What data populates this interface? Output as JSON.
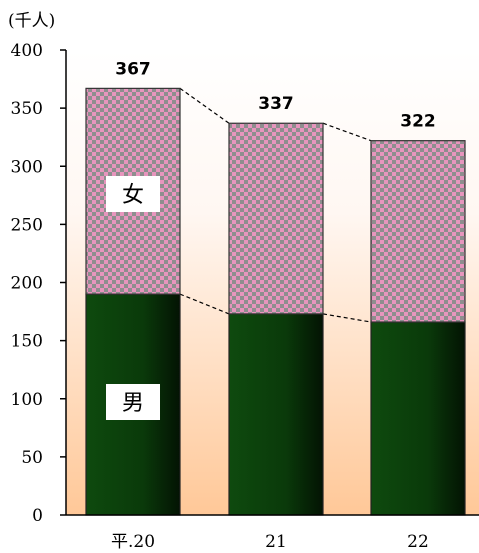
{
  "chart_data": {
    "type": "bar",
    "stacked": true,
    "unit": "(千人)",
    "categories": [
      "平.20",
      "21",
      "22"
    ],
    "series": [
      {
        "name": "男",
        "values": [
          190,
          173,
          166
        ],
        "color": "#0a3a0a"
      },
      {
        "name": "女",
        "values": [
          177,
          164,
          156
        ],
        "color": "#e795bd"
      }
    ],
    "totals": [
      "367",
      "337",
      "322"
    ],
    "ylim": [
      0,
      400
    ],
    "yticks": [
      "0",
      "50",
      "100",
      "150",
      "200",
      "250",
      "300",
      "350",
      "400"
    ],
    "series_connectors": true,
    "legend": "inline",
    "grid": false
  }
}
